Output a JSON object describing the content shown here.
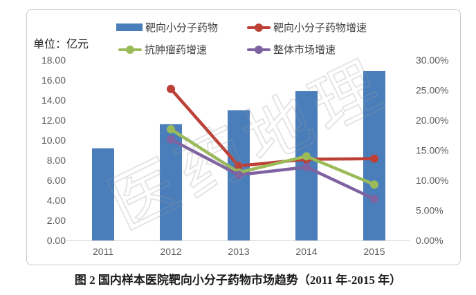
{
  "chart_data": {
    "type": "combo-bar-line",
    "categories": [
      "2011",
      "2012",
      "2013",
      "2014",
      "2015"
    ],
    "bar_series": {
      "name": "靶向小分子药物",
      "color": "#4a7ebb",
      "axis": "left",
      "values": [
        9.2,
        11.6,
        13.0,
        14.9,
        16.9
      ]
    },
    "line_series": [
      {
        "name": "靶向小分子药物增速",
        "color": "#bc4036",
        "axis": "right",
        "values": [
          null,
          25.2,
          12.4,
          13.5,
          13.6
        ]
      },
      {
        "name": "抗肿瘤药增速",
        "color": "#9bbb59",
        "axis": "right",
        "values": [
          null,
          18.5,
          11.3,
          14.0,
          9.3
        ]
      },
      {
        "name": "整体市场增速",
        "color": "#7e62a1",
        "axis": "right",
        "values": [
          null,
          16.8,
          10.9,
          12.2,
          6.9
        ]
      }
    ],
    "left_axis": {
      "min": 0,
      "max": 18,
      "step": 2,
      "labels": [
        "0.00",
        "2.00",
        "4.00",
        "6.00",
        "8.00",
        "10.00",
        "12.00",
        "14.00",
        "16.00",
        "18.00"
      ]
    },
    "right_axis": {
      "min": 0,
      "max": 30,
      "step": 5,
      "labels": [
        "0.00%",
        "5.00%",
        "10.00%",
        "15.00%",
        "20.00%",
        "25.00%",
        "30.00%"
      ]
    },
    "unit_label": "单位：亿元",
    "watermark": "医药地理",
    "caption": "图 2  国内样本医院靶向小分子药物市场趋势（2011 年-2015 年）",
    "grid": false,
    "legend_position": "top"
  }
}
